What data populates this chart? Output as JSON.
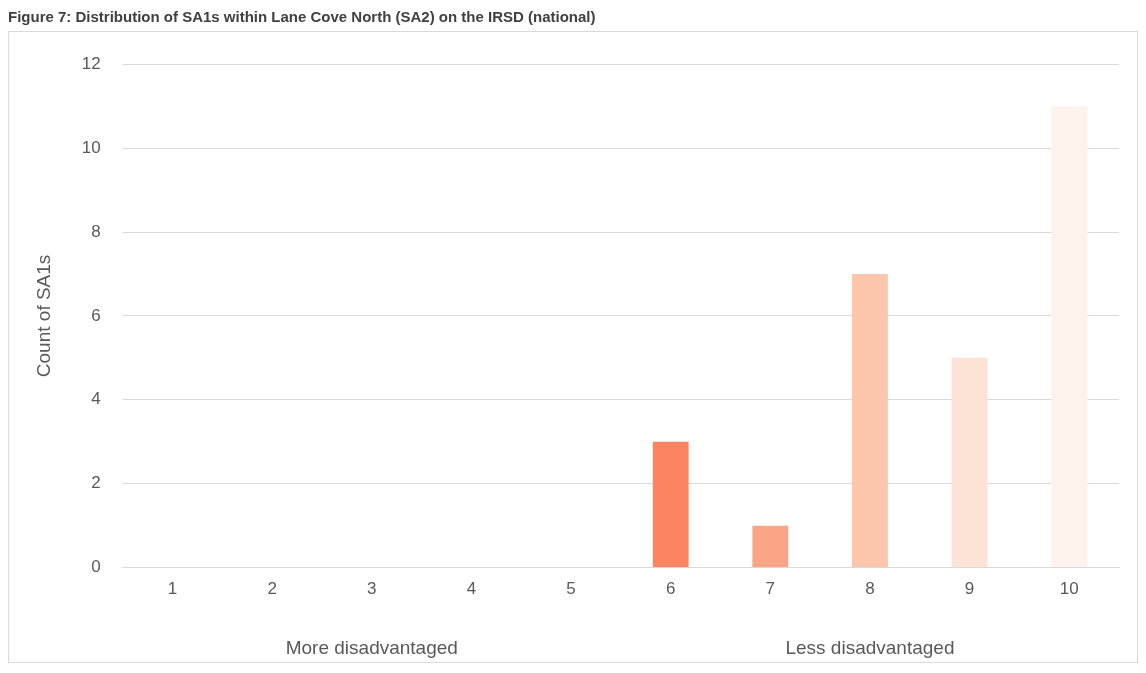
{
  "chart_data": {
    "type": "bar",
    "title": "Figure 7: Distribution of SA1s within Lane Cove North (SA2) on the IRSD (national)",
    "categories": [
      "1",
      "2",
      "3",
      "4",
      "5",
      "6",
      "7",
      "8",
      "9",
      "10"
    ],
    "values": [
      0,
      0,
      0,
      0,
      0,
      3,
      1,
      7,
      5,
      11
    ],
    "colors": [
      "#a50f15",
      "#cb181d",
      "#ef3b2c",
      "#fb6a4a",
      "#fc7d5c",
      "#fc8461",
      "#fba587",
      "#fcc6ad",
      "#fde2d6",
      "#fdf3ec"
    ],
    "ylabel": "Count of SA1s",
    "ylim": [
      0,
      12
    ],
    "yticks": [
      0,
      2,
      4,
      6,
      8,
      10,
      12
    ],
    "grid": "y",
    "legend": false,
    "annotations": [
      "More disadvantaged",
      "Less disadvantaged"
    ]
  }
}
